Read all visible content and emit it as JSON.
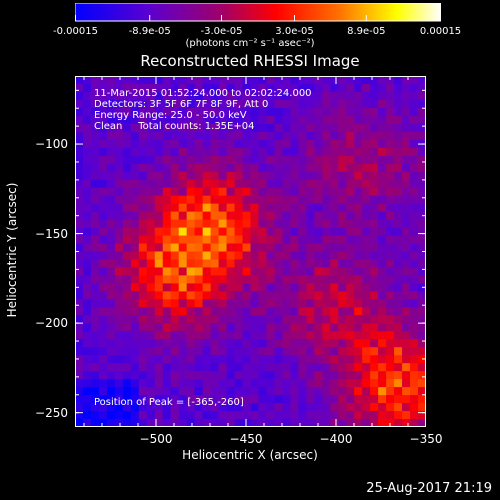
{
  "colorbar": {
    "ticks": [
      "-0.00015",
      "-8.9e-05",
      "-3.0e-05",
      "3.0e-05",
      "8.9e-05",
      "0.00015"
    ],
    "tick_values": [
      -0.00015,
      -8.9e-05,
      -3e-05,
      3e-05,
      8.9e-05,
      0.00015
    ],
    "units": "(photons cm⁻² s⁻¹ asec⁻²)",
    "colors": [
      "#0000ff",
      "#5a00d0",
      "#a0006a",
      "#ff0000",
      "#ff7000",
      "#ffff00",
      "#ffffff"
    ]
  },
  "chart_data": {
    "type": "heatmap",
    "title": "Reconstructed RHESSI Image",
    "xlabel": "Heliocentric X (arcsec)",
    "ylabel": "Heliocentric Y (arcsec)",
    "xlim": [
      -545,
      -350
    ],
    "ylim": [
      -258,
      -62
    ],
    "xticks": [
      -500,
      -450,
      -400,
      -350
    ],
    "yticks": [
      -100,
      -150,
      -200,
      -250
    ],
    "xtick_labels": [
      "−500",
      "−450",
      "−400",
      "−350"
    ],
    "ytick_labels": [
      "−100",
      "−150",
      "−200",
      "−250"
    ],
    "annotations": [
      "11-Mar-2015 01:52:24.000 to 02:02:24.000",
      "Detectors: 3F 5F 6F 7F 8F 9F, Att 0",
      "Energy Range: 25.0 - 50.0 keV",
      "Clean     Total counts: 1.35E+04"
    ],
    "peak_label": "Position of Peak = [-365,-260]",
    "peak_position": [
      -365,
      -260
    ],
    "sources": [
      {
        "x": -470,
        "y": -145,
        "intensity": 1.0
      },
      {
        "x": -490,
        "y": -175,
        "intensity": 0.8
      },
      {
        "x": -365,
        "y": -235,
        "intensity": 1.0
      },
      {
        "x": -400,
        "y": -190,
        "intensity": 0.55
      },
      {
        "x": -385,
        "y": -110,
        "intensity": 0.45
      }
    ]
  },
  "timestamp": "25-Aug-2017 21:19"
}
